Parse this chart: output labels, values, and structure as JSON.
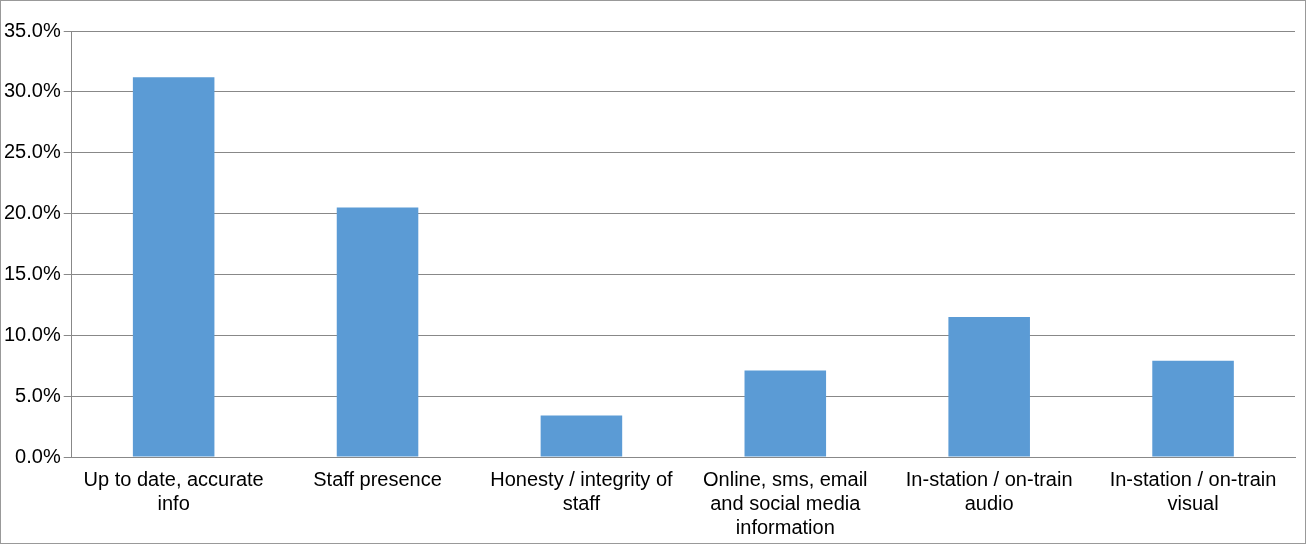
{
  "chart_data": {
    "type": "bar",
    "categories": [
      "Up to date, accurate info",
      "Staff presence",
      "Honesty / integrity of staff",
      "Online, sms, email and social media information",
      "In-station / on-train audio",
      "In-station / on-train visual"
    ],
    "values": [
      31.2,
      20.5,
      3.4,
      7.1,
      11.5,
      7.9
    ],
    "color": "#5b9bd5",
    "ylim": [
      0,
      35
    ],
    "yticks": [
      {
        "value": 0,
        "label": "0.0%"
      },
      {
        "value": 5,
        "label": "5.0%"
      },
      {
        "value": 10,
        "label": "10.0%"
      },
      {
        "value": 15,
        "label": "15.0%"
      },
      {
        "value": 20,
        "label": "20.0%"
      },
      {
        "value": 25,
        "label": "25.0%"
      },
      {
        "value": 30,
        "label": "30.0%"
      },
      {
        "value": 35,
        "label": "35.0%"
      }
    ],
    "grid": "y"
  }
}
